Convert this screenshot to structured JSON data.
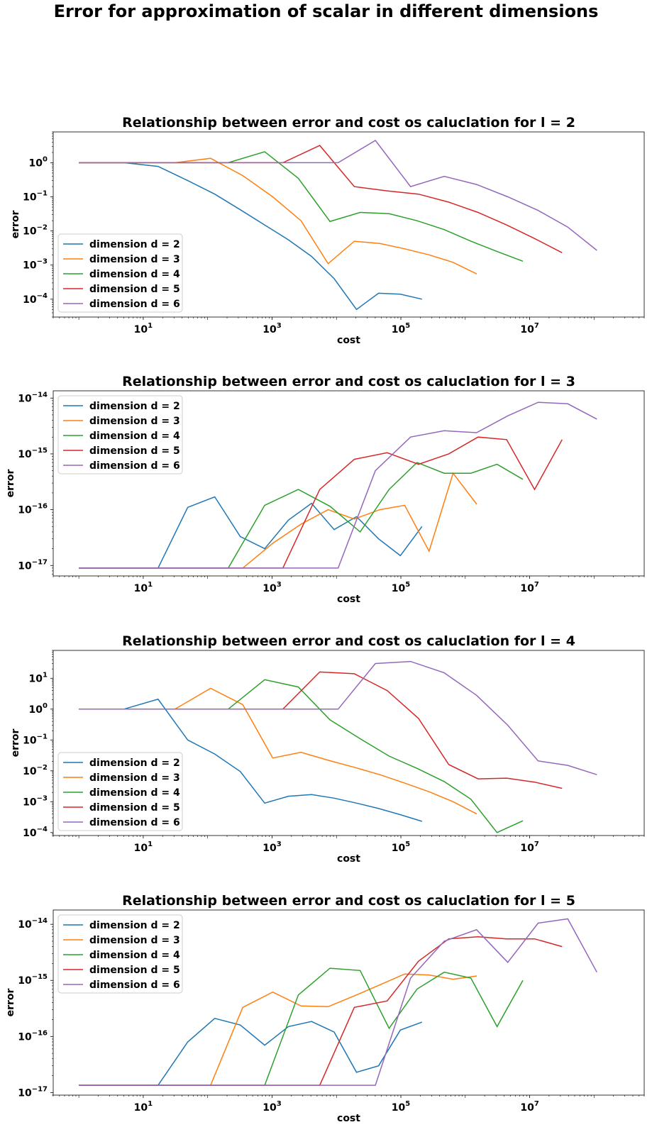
{
  "figure_title": "Error for approximation of scalar in different dimensions",
  "colors": [
    "#1f77b4",
    "#ff7f0e",
    "#2ca02c",
    "#d62728",
    "#9467bd"
  ],
  "chart_data": [
    {
      "type": "line",
      "title": "Relationship  between error and cost os caluclation for l =  2",
      "xlabel": "cost",
      "ylabel": "error",
      "xscale": "log",
      "yscale": "log",
      "xlim": [
        0.4,
        600000000
      ],
      "ylim": [
        3e-05,
        8
      ],
      "xticks": [
        10,
        1000,
        100000,
        10000000
      ],
      "xtick_labels": [
        "10^1",
        "10^3",
        "10^5",
        "10^7"
      ],
      "yticks": [
        0.0001,
        0.001,
        0.01,
        0.1,
        1
      ],
      "ytick_labels": [
        "10^-4",
        "10^-3",
        "10^-2",
        "10^-1",
        "10^0"
      ],
      "legend_loc": "lower left",
      "series": [
        {
          "name": "dimension d = 2",
          "x": [
            1,
            5,
            17,
            49,
            129,
            321,
            769,
            1793,
            4097,
            9217,
            20481,
            45057,
            98305,
            212993
          ],
          "y": [
            1,
            1,
            0.78,
            0.3,
            0.12,
            0.042,
            0.015,
            0.0055,
            0.0018,
            0.0004,
            5e-05,
            0.00015,
            0.00014,
            0.0001
          ]
        },
        {
          "name": "dimension d = 3",
          "x": [
            1,
            7,
            31,
            111,
            351,
            1023,
            2815,
            7423,
            18943,
            47103,
            114687,
            274431,
            647167,
            1507327
          ],
          "y": [
            1,
            1,
            1,
            1.35,
            0.42,
            0.1,
            0.02,
            0.0011,
            0.005,
            0.0043,
            0.003,
            0.002,
            0.0012,
            0.00055
          ]
        },
        {
          "name": "dimension d = 4",
          "x": [
            1,
            9,
            49,
            209,
            769,
            2561,
            7937,
            23297,
            65537,
            178177,
            471041,
            1220609,
            3112961,
            7847937
          ],
          "y": [
            1,
            1,
            1,
            1,
            2.1,
            0.35,
            0.019,
            0.035,
            0.032,
            0.02,
            0.011,
            0.005,
            0.0025,
            0.0013
          ]
        },
        {
          "name": "dimension d = 5",
          "x": [
            1,
            11,
            71,
            351,
            1471,
            5503,
            18943,
            61183,
            187903,
            553983,
            1579007,
            4385791,
            11927551,
            31924223
          ],
          "y": [
            1,
            1,
            1,
            1,
            1,
            3.2,
            0.2,
            0.15,
            0.12,
            0.07,
            0.035,
            0.015,
            0.006,
            0.0023
          ]
        },
        {
          "name": "dimension d = 6",
          "x": [
            1,
            13,
            97,
            545,
            2561,
            10625,
            40193,
            141569,
            471041,
            1496065,
            4571137,
            13535233,
            39075841,
            110427137
          ],
          "y": [
            1,
            1,
            1,
            1,
            1,
            1,
            4.5,
            0.2,
            0.4,
            0.23,
            0.1,
            0.04,
            0.013,
            0.0027
          ]
        }
      ]
    },
    {
      "type": "line",
      "title": "Relationship  between error and cost os caluclation for l =  3",
      "xlabel": "cost",
      "ylabel": "error",
      "xscale": "log",
      "yscale": "log",
      "xlim": [
        0.4,
        600000000
      ],
      "ylim": [
        6.5e-18,
        1.35e-14
      ],
      "xticks": [
        10,
        1000,
        100000,
        10000000
      ],
      "xtick_labels": [
        "10^1",
        "10^3",
        "10^5",
        "10^7"
      ],
      "yticks": [
        1e-17,
        1e-16,
        1e-15,
        1e-14
      ],
      "ytick_labels": [
        "10^-17",
        "10^-16",
        "10^-15",
        "10^-14"
      ],
      "legend_loc": "upper left",
      "series": [
        {
          "name": "dimension d = 2",
          "x": [
            1,
            5,
            17,
            49,
            129,
            321,
            769,
            1793,
            4097,
            9217,
            20481,
            45057,
            98305,
            212993
          ],
          "y": [
            9e-18,
            9e-18,
            9e-18,
            1.1e-16,
            1.7e-16,
            3.3e-17,
            2e-17,
            6.5e-17,
            1.3e-16,
            4.4e-17,
            7.5e-17,
            3e-17,
            1.5e-17,
            5e-17
          ]
        },
        {
          "name": "dimension d = 3",
          "x": [
            1,
            7,
            31,
            111,
            351,
            1023,
            2815,
            7423,
            18943,
            47103,
            114687,
            274431,
            647167,
            1507327
          ],
          "y": [
            9e-18,
            9e-18,
            9e-18,
            9e-18,
            9e-18,
            2.5e-17,
            5.5e-17,
            1e-16,
            6.8e-17,
            1e-16,
            1.2e-16,
            1.8e-17,
            4.5e-16,
            1.25e-16
          ]
        },
        {
          "name": "dimension d = 4",
          "x": [
            1,
            9,
            49,
            209,
            769,
            2561,
            7937,
            23297,
            65537,
            178177,
            471041,
            1220609,
            3112961,
            7847937
          ],
          "y": [
            9e-18,
            9e-18,
            9e-18,
            9e-18,
            1.2e-16,
            2.3e-16,
            1.15e-16,
            4e-17,
            2.3e-16,
            7e-16,
            4.5e-16,
            4.5e-16,
            6.5e-16,
            3.5e-16
          ]
        },
        {
          "name": "dimension d = 5",
          "x": [
            1,
            11,
            71,
            351,
            1471,
            5503,
            18943,
            61183,
            187903,
            553983,
            1579007,
            4385791,
            11927551,
            31924223
          ],
          "y": [
            9e-18,
            9e-18,
            9e-18,
            9e-18,
            9e-18,
            2.3e-16,
            8e-16,
            1.05e-15,
            6.5e-16,
            1e-15,
            2e-15,
            1.8e-15,
            2.3e-16,
            1.8e-15
          ]
        },
        {
          "name": "dimension d = 6",
          "x": [
            1,
            13,
            97,
            545,
            2561,
            10625,
            40193,
            141569,
            471041,
            1496065,
            4571137,
            13535233,
            39075841,
            110427137
          ],
          "y": [
            9e-18,
            9e-18,
            9e-18,
            9e-18,
            9e-18,
            9e-18,
            5e-16,
            2e-15,
            2.6e-15,
            2.4e-15,
            4.8e-15,
            8.4e-15,
            7.9e-15,
            4.2e-15
          ]
        }
      ]
    },
    {
      "type": "line",
      "title": "Relationship  between error and cost os caluclation for l =  4",
      "xlabel": "cost",
      "ylabel": "error",
      "xscale": "log",
      "yscale": "log",
      "xlim": [
        0.4,
        600000000
      ],
      "ylim": [
        8e-05,
        80
      ],
      "xticks": [
        10,
        1000,
        100000,
        10000000
      ],
      "xtick_labels": [
        "10^1",
        "10^3",
        "10^5",
        "10^7"
      ],
      "yticks": [
        0.0001,
        0.001,
        0.01,
        0.1,
        1,
        10
      ],
      "ytick_labels": [
        "10^-4",
        "10^-3",
        "10^-2",
        "10^-1",
        "10^0",
        "10^1"
      ],
      "legend_loc": "lower left",
      "series": [
        {
          "name": "dimension d = 2",
          "x": [
            1,
            5,
            17,
            49,
            129,
            321,
            769,
            1793,
            4097,
            9217,
            20481,
            45057,
            98305,
            212993
          ],
          "y": [
            1,
            1,
            2.1,
            0.1,
            0.035,
            0.0095,
            0.0009,
            0.0015,
            0.0017,
            0.0013,
            0.0009,
            0.0006,
            0.00038,
            0.00023
          ]
        },
        {
          "name": "dimension d = 3",
          "x": [
            1,
            7,
            31,
            111,
            351,
            1023,
            2815,
            7423,
            18943,
            47103,
            114687,
            274431,
            647167,
            1507327
          ],
          "y": [
            1,
            1,
            1,
            4.7,
            1.4,
            0.026,
            0.04,
            0.022,
            0.013,
            0.0075,
            0.004,
            0.0021,
            0.001,
            0.0004
          ]
        },
        {
          "name": "dimension d = 4",
          "x": [
            1,
            9,
            49,
            209,
            769,
            2561,
            7937,
            23297,
            65537,
            178177,
            471041,
            1220609,
            3112961,
            7847937
          ],
          "y": [
            1,
            1,
            1,
            1,
            9,
            5.2,
            0.45,
            0.11,
            0.03,
            0.012,
            0.0045,
            0.0012,
            0.0001,
            0.00024
          ]
        },
        {
          "name": "dimension d = 5",
          "x": [
            1,
            11,
            71,
            351,
            1471,
            5503,
            18943,
            61183,
            187903,
            553983,
            1579007,
            4385791,
            11927551,
            31924223
          ],
          "y": [
            1,
            1,
            1,
            1,
            1,
            16,
            14,
            4,
            0.5,
            0.016,
            0.0055,
            0.0058,
            0.0043,
            0.0027
          ]
        },
        {
          "name": "dimension d = 6",
          "x": [
            1,
            13,
            97,
            545,
            2561,
            10625,
            40193,
            141569,
            471041,
            1496065,
            4571137,
            13535233,
            39075841,
            110427137
          ],
          "y": [
            1,
            1,
            1,
            1,
            1,
            1,
            30,
            35,
            15,
            2.8,
            0.3,
            0.021,
            0.015,
            0.0075
          ]
        }
      ]
    },
    {
      "type": "line",
      "title": "Relationship  between error and cost os caluclation for l =  5",
      "xlabel": "cost",
      "ylabel": "error",
      "xscale": "log",
      "yscale": "log",
      "xlim": [
        0.4,
        600000000
      ],
      "ylim": [
        9e-18,
        1.8e-14
      ],
      "xticks": [
        10,
        1000,
        100000,
        10000000
      ],
      "xtick_labels": [
        "10^1",
        "10^3",
        "10^5",
        "10^7"
      ],
      "yticks": [
        1e-17,
        1e-16,
        1e-15,
        1e-14
      ],
      "ytick_labels": [
        "10^-17",
        "10^-16",
        "10^-15",
        "10^-14"
      ],
      "legend_loc": "upper left",
      "series": [
        {
          "name": "dimension d = 2",
          "x": [
            1,
            5,
            17,
            49,
            129,
            321,
            769,
            1793,
            4097,
            9217,
            20481,
            45057,
            98305,
            212993
          ],
          "y": [
            1.35e-17,
            1.35e-17,
            1.35e-17,
            8e-17,
            2.1e-16,
            1.6e-16,
            7e-17,
            1.5e-16,
            1.85e-16,
            1.2e-16,
            2.3e-17,
            3e-17,
            1.3e-16,
            1.8e-16
          ]
        },
        {
          "name": "dimension d = 3",
          "x": [
            1,
            7,
            31,
            111,
            351,
            1023,
            2815,
            7423,
            18943,
            47103,
            114687,
            274431,
            647167,
            1507327
          ],
          "y": [
            1.35e-17,
            1.35e-17,
            1.35e-17,
            1.35e-17,
            3.3e-16,
            6.2e-16,
            3.5e-16,
            3.4e-16,
            5.3e-16,
            8.3e-16,
            1.3e-15,
            1.25e-15,
            1.05e-15,
            1.2e-15
          ]
        },
        {
          "name": "dimension d = 4",
          "x": [
            1,
            9,
            49,
            209,
            769,
            2561,
            7937,
            23297,
            65537,
            178177,
            471041,
            1220609,
            3112961,
            7847937
          ],
          "y": [
            1.35e-17,
            1.35e-17,
            1.35e-17,
            1.35e-17,
            1.35e-17,
            5.5e-16,
            1.65e-15,
            1.5e-15,
            1.4e-16,
            7e-16,
            1.4e-15,
            1.1e-15,
            1.5e-16,
            1e-15
          ]
        },
        {
          "name": "dimension d = 5",
          "x": [
            1,
            11,
            71,
            351,
            1471,
            5503,
            18943,
            61183,
            187903,
            553983,
            1579007,
            4385791,
            11927551,
            31924223
          ],
          "y": [
            1.35e-17,
            1.35e-17,
            1.35e-17,
            1.35e-17,
            1.35e-17,
            1.35e-17,
            3.3e-16,
            4.3e-16,
            2.2e-15,
            5.5e-15,
            6e-15,
            5.5e-15,
            5.5e-15,
            4e-15
          ]
        },
        {
          "name": "dimension d = 6",
          "x": [
            1,
            13,
            97,
            545,
            2561,
            10625,
            40193,
            141569,
            471041,
            1496065,
            4571137,
            13535233,
            39075841,
            110427137
          ],
          "y": [
            1.35e-17,
            1.35e-17,
            1.35e-17,
            1.35e-17,
            1.35e-17,
            1.35e-17,
            1.35e-17,
            1.1e-15,
            5e-15,
            8e-15,
            2.1e-15,
            1.05e-14,
            1.25e-14,
            1.4e-15
          ]
        }
      ]
    }
  ]
}
